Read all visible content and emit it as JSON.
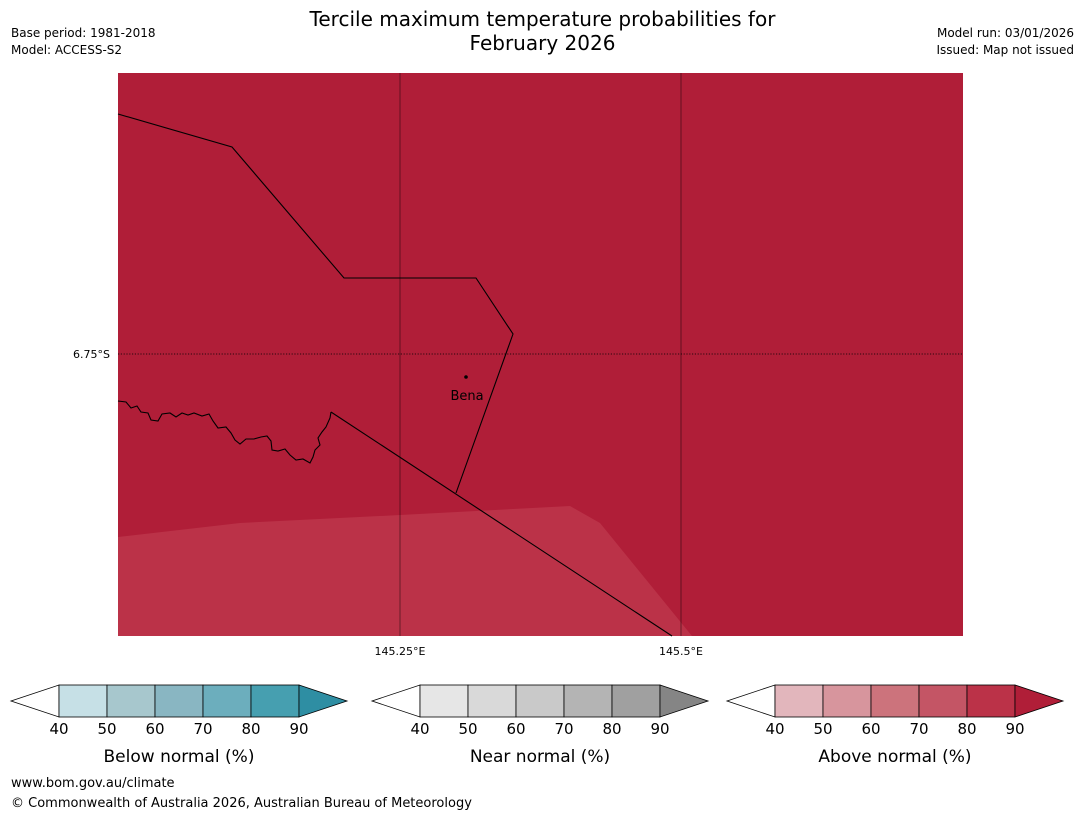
{
  "header": {
    "title_line1": "Tercile maximum temperature probabilities for",
    "title_line2": "February 2026",
    "base_period": "Base period: 1981-2018",
    "model": "Model: ACCESS-S2",
    "model_run": "Model run: 03/01/2026",
    "issued": "Issued: Map not issued"
  },
  "map": {
    "place_label": "Bena",
    "lat_label": "6.75°S",
    "lon_labels": [
      "145.25°E",
      "145.5°E"
    ],
    "fill_colors": {
      "above_80_90": "#b01e38",
      "above_70_80": "#bb3248"
    }
  },
  "legend": {
    "below": {
      "label": "Below normal (%)",
      "ticks": [
        "40",
        "50",
        "60",
        "70",
        "80",
        "90"
      ],
      "colors": [
        "#ffffff",
        "#c6e0e6",
        "#a7c7cd",
        "#89b6c2",
        "#6caebd",
        "#469fb0",
        "#2e8ea3"
      ]
    },
    "near": {
      "label": "Near normal (%)",
      "ticks": [
        "40",
        "50",
        "60",
        "70",
        "80",
        "90"
      ],
      "colors": [
        "#ffffff",
        "#e6e6e6",
        "#d9d9d9",
        "#c9c9c9",
        "#b4b4b4",
        "#a0a0a0",
        "#858585"
      ]
    },
    "above": {
      "label": "Above normal (%)",
      "ticks": [
        "40",
        "50",
        "60",
        "70",
        "80",
        "90"
      ],
      "colors": [
        "#ffffff",
        "#e2b6bc",
        "#d7959d",
        "#cc737c",
        "#c45565",
        "#bb3248",
        "#b01e38"
      ]
    }
  },
  "footer": {
    "website": "www.bom.gov.au/climate",
    "copyright": "© Commonwealth of Australia 2026, Australian Bureau of Meteorology"
  }
}
